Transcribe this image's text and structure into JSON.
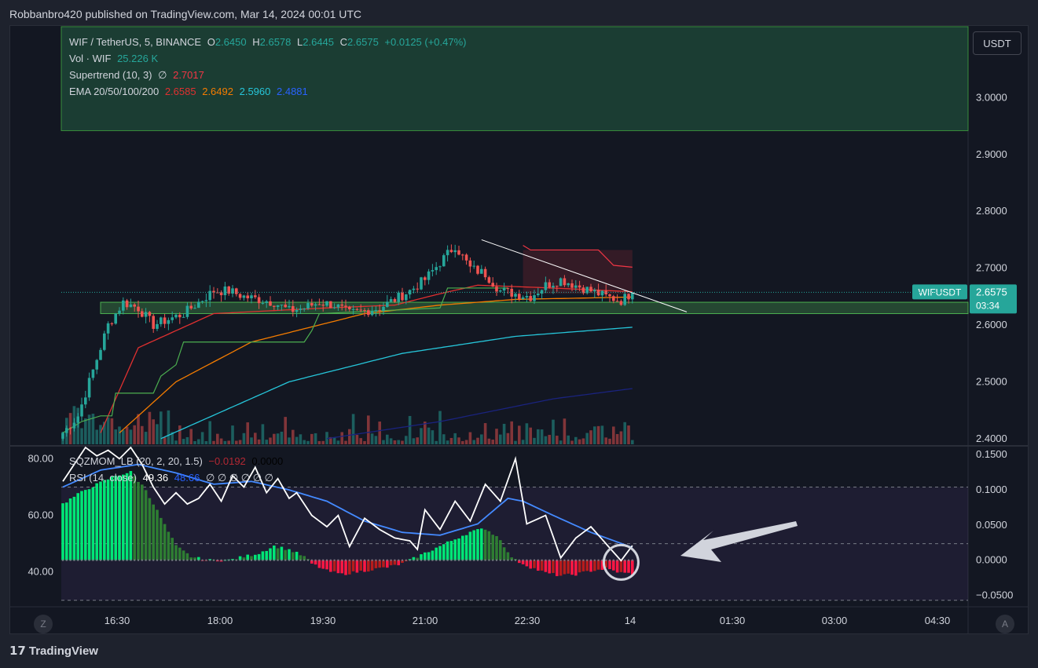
{
  "header": {
    "published": "Robbanbro420 published on TradingView.com, Mar 14, 2024 00:01 UTC"
  },
  "legend": {
    "symbol": "WIF / TetherUS, 5, BINANCE",
    "o_label": "O",
    "o": "2.6450",
    "h_label": "H",
    "h": "2.6578",
    "l_label": "L",
    "l": "2.6445",
    "c_label": "C",
    "c": "2.6575",
    "change": "+0.0125 (+0.47%)",
    "vol_label": "Vol · WIF",
    "vol": "25.226 K",
    "st_label": "Supertrend (10, 3)",
    "st_sym": "∅",
    "st": "2.7017",
    "ema_label": "EMA 20/50/100/200",
    "ema20": "2.6585",
    "ema50": "2.6492",
    "ema100": "2.5960",
    "ema200": "2.4881",
    "sqz_label": "SQZMOM_LB (20, 2, 20, 1.5)",
    "sqz1": "−0.0192",
    "sqz2": "0.0000",
    "rsi_label": "RSI (14, close)",
    "rsi1": "49.36",
    "rsi2": "48.66",
    "rsi_rest": "∅ ∅ ∅ ∅ ∅ ∅"
  },
  "currency_button": "USDT",
  "price_tag": {
    "symbol": "WIFUSDT",
    "price": "2.6575",
    "countdown": "03:34"
  },
  "bottom": {
    "tz_button": "Z",
    "auto_button": "A",
    "logo": "TradingView"
  },
  "colors": {
    "up": "#26a69a",
    "down": "#ef5350",
    "ema20": "#e03030",
    "ema50": "#f57c00",
    "ema100": "#26c6da",
    "ema200": "#1a237e",
    "supertrend_up": "#4caf50",
    "supertrend_down": "#f23645",
    "rsi": "#ffffff",
    "rsi_ma": "#2962ff"
  },
  "chart_data": [
    {
      "type": "candlestick",
      "title": "WIF / TetherUS, 5, BINANCE",
      "x_ticks": [
        "16:30",
        "18:00",
        "19:30",
        "21:00",
        "22:30",
        "14",
        "01:30",
        "03:00",
        "04:30"
      ],
      "y_ticks": [
        "3.0000",
        "2.9000",
        "2.8000",
        "2.7000",
        "2.6000",
        "2.5000",
        "2.4000"
      ],
      "ylim": [
        2.39,
        3.125
      ],
      "close_anchors": [
        [
          0,
          2.41
        ],
        [
          4,
          2.44
        ],
        [
          8,
          2.52
        ],
        [
          12,
          2.6
        ],
        [
          16,
          2.64
        ],
        [
          20,
          2.63
        ],
        [
          24,
          2.6
        ],
        [
          28,
          2.61
        ],
        [
          32,
          2.62
        ],
        [
          36,
          2.64
        ],
        [
          40,
          2.66
        ],
        [
          44,
          2.66
        ],
        [
          48,
          2.65
        ],
        [
          52,
          2.645
        ],
        [
          56,
          2.64
        ],
        [
          60,
          2.625
        ],
        [
          64,
          2.63
        ],
        [
          68,
          2.64
        ],
        [
          72,
          2.635
        ],
        [
          76,
          2.62
        ],
        [
          80,
          2.625
        ],
        [
          84,
          2.63
        ],
        [
          88,
          2.645
        ],
        [
          92,
          2.66
        ],
        [
          96,
          2.68
        ],
        [
          100,
          2.71
        ],
        [
          104,
          2.74
        ],
        [
          108,
          2.7
        ],
        [
          112,
          2.69
        ],
        [
          116,
          2.66
        ],
        [
          120,
          2.655
        ],
        [
          124,
          2.65
        ],
        [
          128,
          2.67
        ],
        [
          132,
          2.68
        ],
        [
          136,
          2.67
        ],
        [
          140,
          2.66
        ],
        [
          144,
          2.65
        ],
        [
          148,
          2.643
        ],
        [
          151,
          2.6575
        ]
      ],
      "ema20_anchors": [
        [
          10,
          2.41
        ],
        [
          20,
          2.56
        ],
        [
          40,
          2.62
        ],
        [
          70,
          2.63
        ],
        [
          88,
          2.635
        ],
        [
          100,
          2.655
        ],
        [
          110,
          2.67
        ],
        [
          130,
          2.665
        ],
        [
          151,
          2.6585
        ]
      ],
      "ema50_anchors": [
        [
          15,
          2.41
        ],
        [
          30,
          2.5
        ],
        [
          50,
          2.57
        ],
        [
          80,
          2.62
        ],
        [
          100,
          2.635
        ],
        [
          120,
          2.645
        ],
        [
          151,
          2.6492
        ]
      ],
      "ema100_anchors": [
        [
          26,
          2.4
        ],
        [
          60,
          2.5
        ],
        [
          90,
          2.55
        ],
        [
          120,
          2.58
        ],
        [
          151,
          2.596
        ]
      ],
      "ema200_anchors": [
        [
          70,
          2.4
        ],
        [
          100,
          2.43
        ],
        [
          130,
          2.47
        ],
        [
          151,
          2.4881
        ]
      ],
      "supertrend_up": [
        [
          0,
          2.41
        ],
        [
          5,
          2.43
        ],
        [
          10,
          2.44
        ],
        [
          13,
          2.44
        ],
        [
          14,
          2.48
        ],
        [
          24,
          2.48
        ],
        [
          26,
          2.51
        ],
        [
          30,
          2.53
        ],
        [
          32,
          2.57
        ],
        [
          64,
          2.57
        ],
        [
          66,
          2.59
        ],
        [
          68,
          2.62
        ],
        [
          100,
          2.63
        ],
        [
          102,
          2.665
        ],
        [
          118,
          2.665
        ]
      ],
      "supertrend_down": [
        [
          122,
          2.74
        ],
        [
          124,
          2.732
        ],
        [
          142,
          2.732
        ],
        [
          146,
          2.705
        ],
        [
          151,
          2.7017
        ]
      ],
      "annotations": {
        "resistance_zone": [
          2.942,
          3.14
        ],
        "support_zone": [
          2.62,
          2.64
        ]
      },
      "last_price": 2.6575
    },
    {
      "type": "bar",
      "name": "Vol · WIF",
      "last_value": "25.226 K"
    },
    {
      "type": "line",
      "name": "RSI (14, close)",
      "y_ticks": [
        "80.00",
        "60.00",
        "40.00"
      ],
      "ylim": [
        28,
        84
      ],
      "rsi_anchors": [
        [
          0,
          72
        ],
        [
          3,
          78
        ],
        [
          6,
          84
        ],
        [
          9,
          81
        ],
        [
          12,
          83
        ],
        [
          15,
          80
        ],
        [
          18,
          84
        ],
        [
          21,
          78
        ],
        [
          24,
          70
        ],
        [
          27,
          64
        ],
        [
          30,
          68
        ],
        [
          33,
          64
        ],
        [
          36,
          66
        ],
        [
          39,
          71
        ],
        [
          42,
          65
        ],
        [
          45,
          74
        ],
        [
          48,
          70
        ],
        [
          51,
          77
        ],
        [
          54,
          68
        ],
        [
          57,
          73
        ],
        [
          60,
          66
        ],
        [
          62,
          68
        ],
        [
          66,
          60
        ],
        [
          70,
          56
        ],
        [
          73,
          60
        ],
        [
          76,
          49
        ],
        [
          80,
          59
        ],
        [
          84,
          55
        ],
        [
          88,
          52
        ],
        [
          92,
          51
        ],
        [
          94,
          48
        ],
        [
          96,
          62
        ],
        [
          100,
          55
        ],
        [
          104,
          65
        ],
        [
          108,
          58
        ],
        [
          112,
          71
        ],
        [
          116,
          65
        ],
        [
          120,
          80
        ],
        [
          123,
          57
        ],
        [
          128,
          60
        ],
        [
          132,
          45
        ],
        [
          136,
          52
        ],
        [
          140,
          56
        ],
        [
          144,
          50
        ],
        [
          148,
          44
        ],
        [
          151,
          49.36
        ]
      ],
      "rsi_ma_anchors": [
        [
          0,
          70
        ],
        [
          10,
          76
        ],
        [
          20,
          78
        ],
        [
          30,
          75
        ],
        [
          40,
          71
        ],
        [
          50,
          72
        ],
        [
          60,
          69
        ],
        [
          70,
          65
        ],
        [
          80,
          58
        ],
        [
          90,
          54
        ],
        [
          100,
          53
        ],
        [
          110,
          57
        ],
        [
          118,
          66
        ],
        [
          122,
          65
        ],
        [
          130,
          60
        ],
        [
          140,
          54
        ],
        [
          151,
          48.66
        ]
      ]
    },
    {
      "type": "bar",
      "name": "SQZMOM_LB (20, 2, 20, 1.5)",
      "y_ticks": [
        "0.1500",
        "0.1000",
        "0.0500",
        "0.0000",
        "−0.0500"
      ],
      "ylim": [
        -0.065,
        0.16
      ],
      "mom_anchors": [
        [
          0,
          0.08
        ],
        [
          6,
          0.1
        ],
        [
          10,
          0.11
        ],
        [
          14,
          0.12
        ],
        [
          18,
          0.125
        ],
        [
          22,
          0.1
        ],
        [
          26,
          0.06
        ],
        [
          30,
          0.02
        ],
        [
          34,
          0.005
        ],
        [
          38,
          0.0
        ],
        [
          44,
          0.0
        ],
        [
          48,
          0.005
        ],
        [
          52,
          0.01
        ],
        [
          56,
          0.02
        ],
        [
          60,
          0.015
        ],
        [
          64,
          0.005
        ],
        [
          66,
          -0.005
        ],
        [
          70,
          -0.015
        ],
        [
          74,
          -0.02
        ],
        [
          80,
          -0.015
        ],
        [
          86,
          -0.01
        ],
        [
          90,
          -0.005
        ],
        [
          92,
          0.0
        ],
        [
          96,
          0.01
        ],
        [
          100,
          0.02
        ],
        [
          104,
          0.03
        ],
        [
          108,
          0.04
        ],
        [
          112,
          0.045
        ],
        [
          116,
          0.03
        ],
        [
          118,
          0.01
        ],
        [
          120,
          0.0
        ],
        [
          124,
          -0.01
        ],
        [
          128,
          -0.018
        ],
        [
          132,
          -0.022
        ],
        [
          136,
          -0.02
        ],
        [
          140,
          -0.015
        ],
        [
          144,
          -0.012
        ],
        [
          148,
          -0.018
        ],
        [
          151,
          -0.0192
        ]
      ]
    }
  ]
}
